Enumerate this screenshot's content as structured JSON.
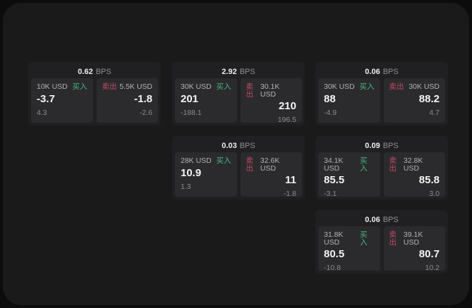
{
  "labels": {
    "bps": "BPS",
    "buy": "买入",
    "sell": "卖出"
  },
  "colors": {
    "buy_green": "#48ba7e",
    "sell_red": "#c04b64",
    "card_bg": "#202022",
    "panel_bg": "#2b2b2d",
    "app_bg": "#1a1a1b"
  },
  "cards": [
    {
      "bps": "0.62",
      "buy": {
        "amount": "10K USD",
        "price": "-3.7",
        "sub": "4.3"
      },
      "sell": {
        "amount": "5.5K USD",
        "price": "-1.8",
        "sub": "-2.6"
      }
    },
    {
      "bps": "2.92",
      "buy": {
        "amount": "30K USD",
        "price": "201",
        "sub": "-188.1"
      },
      "sell": {
        "amount": "30.1K USD",
        "price": "210",
        "sub": "196.5"
      }
    },
    {
      "bps": "0.06",
      "buy": {
        "amount": "30K USD",
        "price": "88",
        "sub": "-4.9"
      },
      "sell": {
        "amount": "30K USD",
        "price": "88.2",
        "sub": "4.7"
      }
    },
    {
      "bps": "0.03",
      "buy": {
        "amount": "28K USD",
        "price": "10.9",
        "sub": "1.3"
      },
      "sell": {
        "amount": "32.6K USD",
        "price": "11",
        "sub": "-1.8"
      }
    },
    {
      "bps": "0.09",
      "buy": {
        "amount": "34.1K USD",
        "price": "85.5",
        "sub": "-3.1"
      },
      "sell": {
        "amount": "32.8K USD",
        "price": "85.8",
        "sub": "3.0"
      }
    },
    {
      "bps": "0.06",
      "buy": {
        "amount": "31.8K USD",
        "price": "80.5",
        "sub": "-10.8"
      },
      "sell": {
        "amount": "39.1K USD",
        "price": "80.7",
        "sub": "10.2"
      }
    }
  ]
}
